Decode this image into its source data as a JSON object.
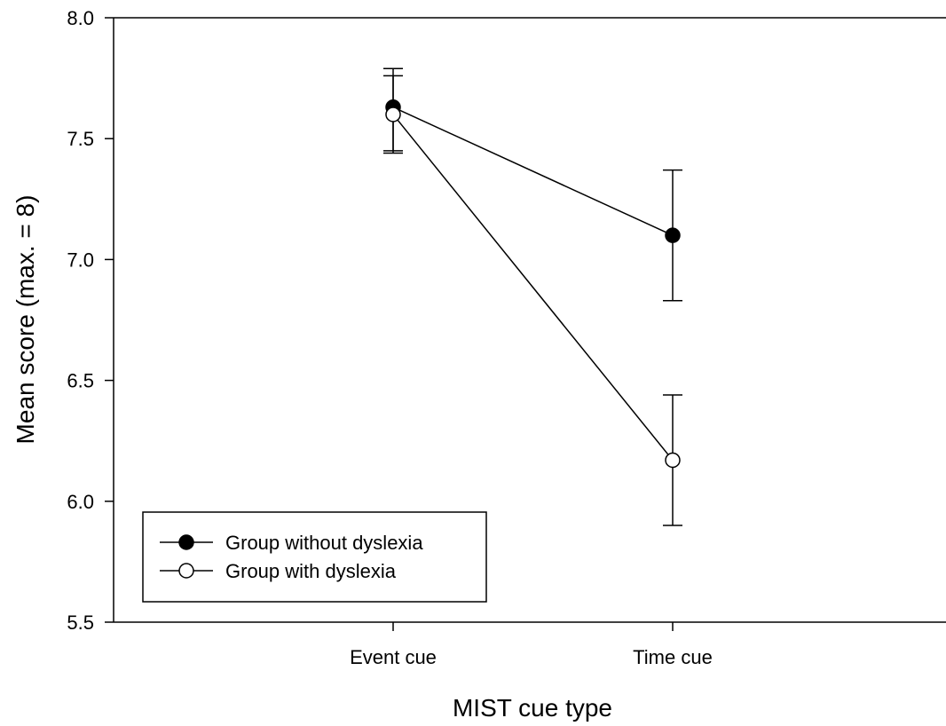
{
  "chart_data": {
    "type": "line",
    "xlabel": "MIST cue type",
    "ylabel": "Mean score (max. = 8)",
    "categories": [
      "Event cue",
      "Time cue"
    ],
    "ylim": [
      5.5,
      8.0
    ],
    "yticks": [
      5.5,
      6.0,
      6.5,
      7.0,
      7.5,
      8.0
    ],
    "ytick_labels": [
      "5.5",
      "6.0",
      "6.5",
      "7.0",
      "7.5",
      "8.0"
    ],
    "grid": false,
    "legend_position": "bottom-left",
    "series": [
      {
        "name": "Group without dyslexia",
        "marker": "filled-circle",
        "color": "#000000",
        "values": [
          7.63,
          7.1
        ],
        "error_low": [
          7.45,
          6.83
        ],
        "error_high": [
          7.79,
          7.37
        ]
      },
      {
        "name": "Group with dyslexia",
        "marker": "open-circle",
        "color": "#000000",
        "values": [
          7.6,
          6.17
        ],
        "error_low": [
          7.44,
          5.9
        ],
        "error_high": [
          7.76,
          6.44
        ]
      }
    ]
  }
}
